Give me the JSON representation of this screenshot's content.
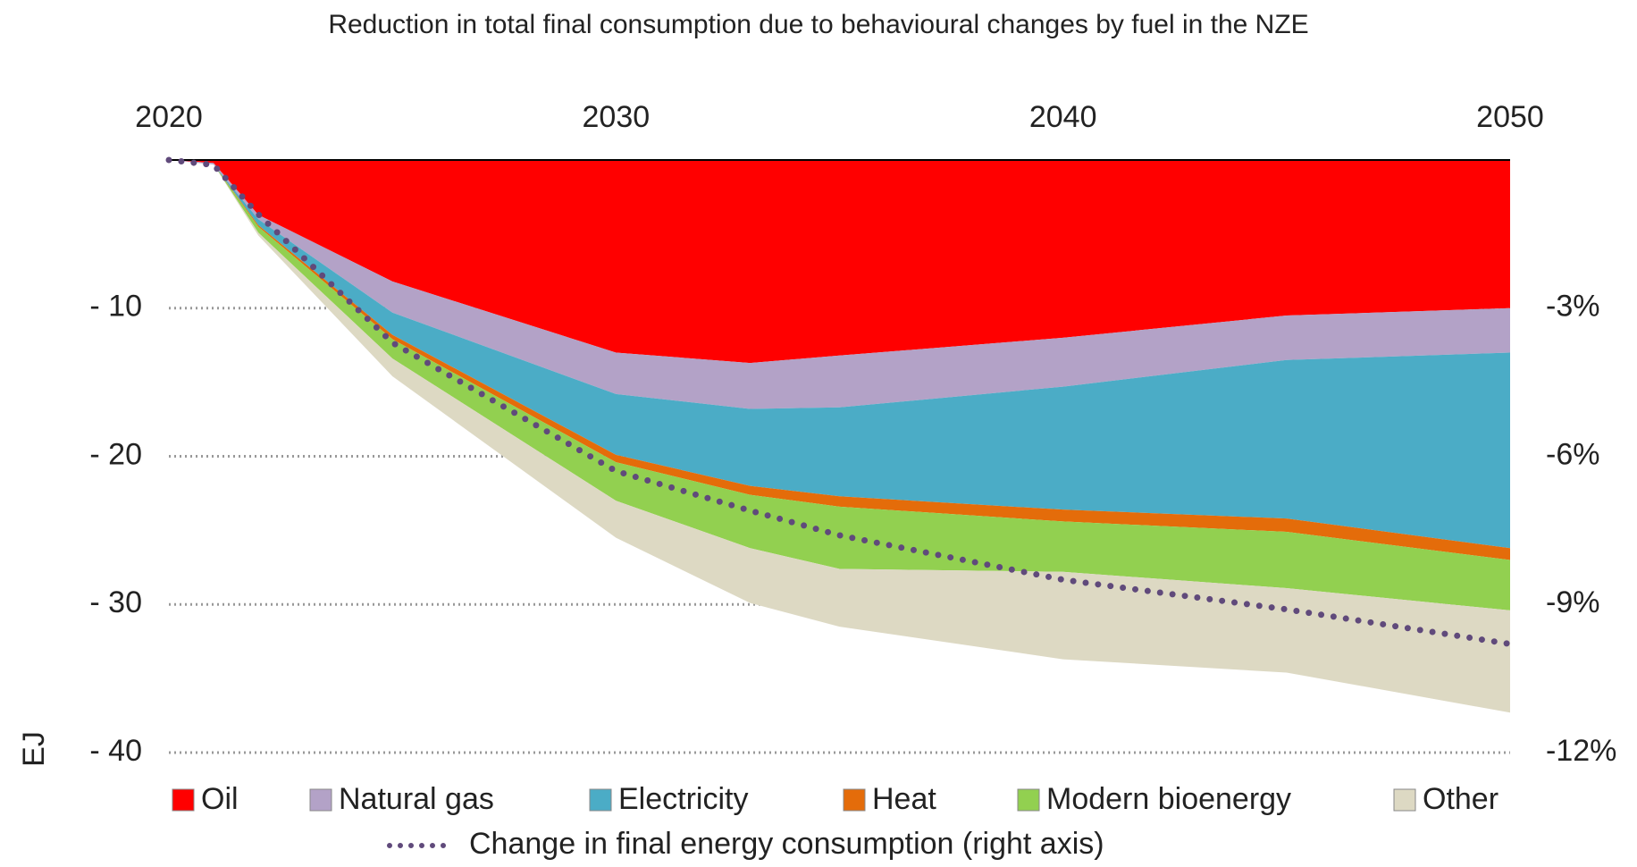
{
  "chart_data": {
    "type": "stacked_area",
    "title": "Reduction in total final consumption due to behavioural changes by fuel in the NZE",
    "y_label": "EJ",
    "x": [
      2020,
      2021,
      2022,
      2025,
      2030,
      2033,
      2035,
      2040,
      2045,
      2050
    ],
    "xlim": [
      2020,
      2050
    ],
    "xticks": [
      2020,
      2030,
      2040,
      2050
    ],
    "ylim": [
      -40,
      0
    ],
    "yticks": [
      {
        "value": -10,
        "label": "- 10"
      },
      {
        "value": -20,
        "label": "- 20"
      },
      {
        "value": -30,
        "label": "- 30"
      },
      {
        "value": -40,
        "label": "- 40"
      }
    ],
    "y2lim": [
      -12,
      0
    ],
    "y2ticks": [
      {
        "value": -3,
        "label": "-3%"
      },
      {
        "value": -6,
        "label": "-6%"
      },
      {
        "value": -9,
        "label": "-9%"
      },
      {
        "value": -12,
        "label": "-12%"
      }
    ],
    "grid": true,
    "series": [
      {
        "name": "Oil",
        "color": "#ff0000",
        "values": [
          0,
          -0.2,
          -3.7,
          -8.2,
          -13,
          -13.7,
          -13.2,
          -12,
          -10.5,
          -10
        ]
      },
      {
        "name": "Natural gas",
        "color": "#b3a2c7",
        "values": [
          0,
          -0.1,
          -0.3,
          -2.1,
          -2.8,
          -3.1,
          -3.5,
          -3.3,
          -3,
          -3
        ]
      },
      {
        "name": "Electricity",
        "color": "#4bacc6",
        "values": [
          0,
          0,
          -0.4,
          -1.5,
          -4.1,
          -5.2,
          -6,
          -8.3,
          -10.7,
          -13.2
        ]
      },
      {
        "name": "Heat",
        "color": "#e46c0a",
        "values": [
          0,
          0,
          -0.1,
          -0.3,
          -0.5,
          -0.6,
          -0.7,
          -0.8,
          -0.9,
          -0.8
        ]
      },
      {
        "name": "Modern bioenergy",
        "color": "#92d050",
        "values": [
          0,
          0,
          -0.4,
          -1.3,
          -2.6,
          -3.6,
          -4.2,
          -3.4,
          -3.8,
          -3.4
        ]
      },
      {
        "name": "Other",
        "color": "#ddd9c3",
        "values": [
          0,
          0,
          -0.2,
          -1.2,
          -2.5,
          -3.7,
          -3.9,
          -5.9,
          -5.7,
          -6.9
        ]
      },
      {
        "name": "Change in final energy consumption (right axis)",
        "color": "#604a7b",
        "type": "line",
        "axis": "y2",
        "values": [
          0,
          -0.1,
          -1.1,
          -3.7,
          -6.3,
          -7.1,
          -7.6,
          -8.5,
          -9.1,
          -9.8
        ]
      }
    ]
  }
}
